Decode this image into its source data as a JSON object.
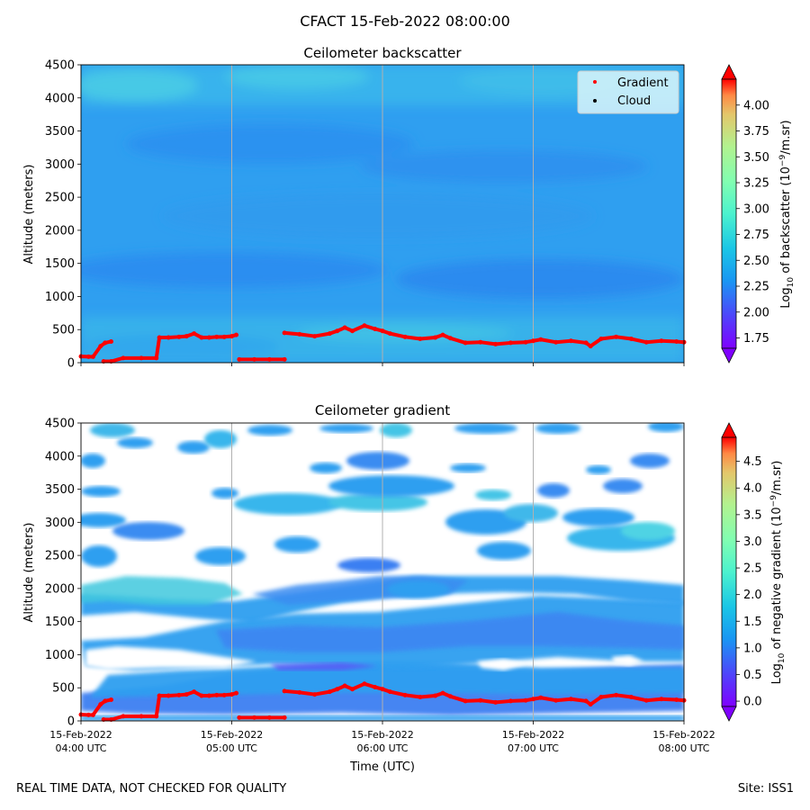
{
  "title": "CFACT 15-Feb-2022 08:00:00",
  "footer": {
    "left": "REAL TIME DATA, NOT CHECKED FOR QUALITY",
    "right": "Site: ISS1"
  },
  "x_axis": {
    "label": "Time (UTC)",
    "ticks": [
      {
        "line1": "15-Feb-2022",
        "line2": "04:00 UTC",
        "hour": 4
      },
      {
        "line1": "15-Feb-2022",
        "line2": "05:00 UTC",
        "hour": 5
      },
      {
        "line1": "15-Feb-2022",
        "line2": "06:00 UTC",
        "hour": 6
      },
      {
        "line1": "15-Feb-2022",
        "line2": "07:00 UTC",
        "hour": 7
      },
      {
        "line1": "15-Feb-2022",
        "line2": "08:00 UTC",
        "hour": 8
      }
    ],
    "range_hours": [
      4,
      8
    ]
  },
  "colors": {
    "background_blue": "#2f9ff0",
    "gradient_marker": "#ff0000",
    "cloud_marker": "#000000",
    "grid": "#b0b0b0"
  },
  "chart_data": [
    {
      "type": "heatmap",
      "title": "Ceilometer backscatter",
      "ylabel": "Altitude (meters)",
      "ylim": [
        0,
        4500
      ],
      "yticks": [
        "0",
        "500",
        "1000",
        "1500",
        "2000",
        "2500",
        "3000",
        "3500",
        "4000",
        "4500"
      ],
      "colorbar": {
        "label": "Log10 of backscatter (10^-9/m.sr)",
        "label_main": "Log",
        "label_sub": "10",
        "label_rest": " of backscatter (10",
        "label_sup": "−9",
        "label_end": "/m.sr)",
        "range": [
          1.65,
          4.25
        ],
        "ticks": [
          "1.75",
          "2.00",
          "2.25",
          "2.50",
          "2.75",
          "3.00",
          "3.25",
          "3.50",
          "3.75",
          "4.00"
        ],
        "tick_values": [
          1.75,
          2.0,
          2.25,
          2.5,
          2.75,
          3.0,
          3.25,
          3.5,
          3.75,
          4.0
        ]
      },
      "legend": {
        "position": "top-right",
        "entries": [
          "Gradient",
          "Cloud"
        ]
      },
      "gradient_series": {
        "name": "Gradient",
        "points": [
          [
            4.0,
            95
          ],
          [
            4.05,
            90
          ],
          [
            4.08,
            90
          ],
          [
            4.13,
            250
          ],
          [
            4.16,
            300
          ],
          [
            4.2,
            320
          ],
          [
            4.15,
            20
          ],
          [
            4.2,
            20
          ],
          [
            4.28,
            70
          ],
          [
            4.4,
            70
          ],
          [
            4.5,
            70
          ],
          [
            4.52,
            380
          ],
          [
            4.58,
            380
          ],
          [
            4.65,
            390
          ],
          [
            4.7,
            400
          ],
          [
            4.75,
            440
          ],
          [
            4.8,
            380
          ],
          [
            4.85,
            380
          ],
          [
            4.9,
            390
          ],
          [
            4.95,
            390
          ],
          [
            5.0,
            400
          ],
          [
            5.03,
            420
          ],
          [
            5.05,
            50
          ],
          [
            5.15,
            50
          ],
          [
            5.25,
            50
          ],
          [
            5.35,
            50
          ],
          [
            5.35,
            450
          ],
          [
            5.45,
            430
          ],
          [
            5.55,
            400
          ],
          [
            5.65,
            440
          ],
          [
            5.7,
            480
          ],
          [
            5.75,
            530
          ],
          [
            5.8,
            480
          ],
          [
            5.88,
            560
          ],
          [
            5.95,
            510
          ],
          [
            6.0,
            480
          ],
          [
            6.05,
            440
          ],
          [
            6.15,
            390
          ],
          [
            6.25,
            360
          ],
          [
            6.35,
            380
          ],
          [
            6.4,
            420
          ],
          [
            6.45,
            370
          ],
          [
            6.55,
            300
          ],
          [
            6.65,
            310
          ],
          [
            6.75,
            280
          ],
          [
            6.85,
            300
          ],
          [
            6.95,
            310
          ],
          [
            7.0,
            330
          ],
          [
            7.05,
            350
          ],
          [
            7.15,
            310
          ],
          [
            7.25,
            330
          ],
          [
            7.35,
            300
          ],
          [
            7.38,
            250
          ],
          [
            7.45,
            360
          ],
          [
            7.55,
            390
          ],
          [
            7.65,
            360
          ],
          [
            7.75,
            310
          ],
          [
            7.85,
            330
          ],
          [
            7.95,
            320
          ],
          [
            8.0,
            310
          ]
        ]
      }
    },
    {
      "type": "heatmap",
      "title": "Ceilometer gradient",
      "ylabel": "Altitude (meters)",
      "ylim": [
        0,
        4500
      ],
      "yticks": [
        "0",
        "500",
        "1000",
        "1500",
        "2000",
        "2500",
        "3000",
        "3500",
        "4000",
        "4500"
      ],
      "colorbar": {
        "label": "Log10 of negative gradient (10^-9/m.sr)",
        "label_main": "Log",
        "label_sub": "10",
        "label_rest": " of negative gradient (10",
        "label_sup": "−9",
        "label_end": "/m.sr)",
        "range": [
          -0.1,
          4.95
        ],
        "ticks": [
          "0.0",
          "0.5",
          "1.0",
          "1.5",
          "2.0",
          "2.5",
          "3.0",
          "3.5",
          "4.0",
          "4.5"
        ],
        "tick_values": [
          0.0,
          0.5,
          1.0,
          1.5,
          2.0,
          2.5,
          3.0,
          3.5,
          4.0,
          4.5
        ]
      },
      "gradient_series": {
        "name": "Gradient",
        "same_as_backscatter": true
      }
    }
  ]
}
